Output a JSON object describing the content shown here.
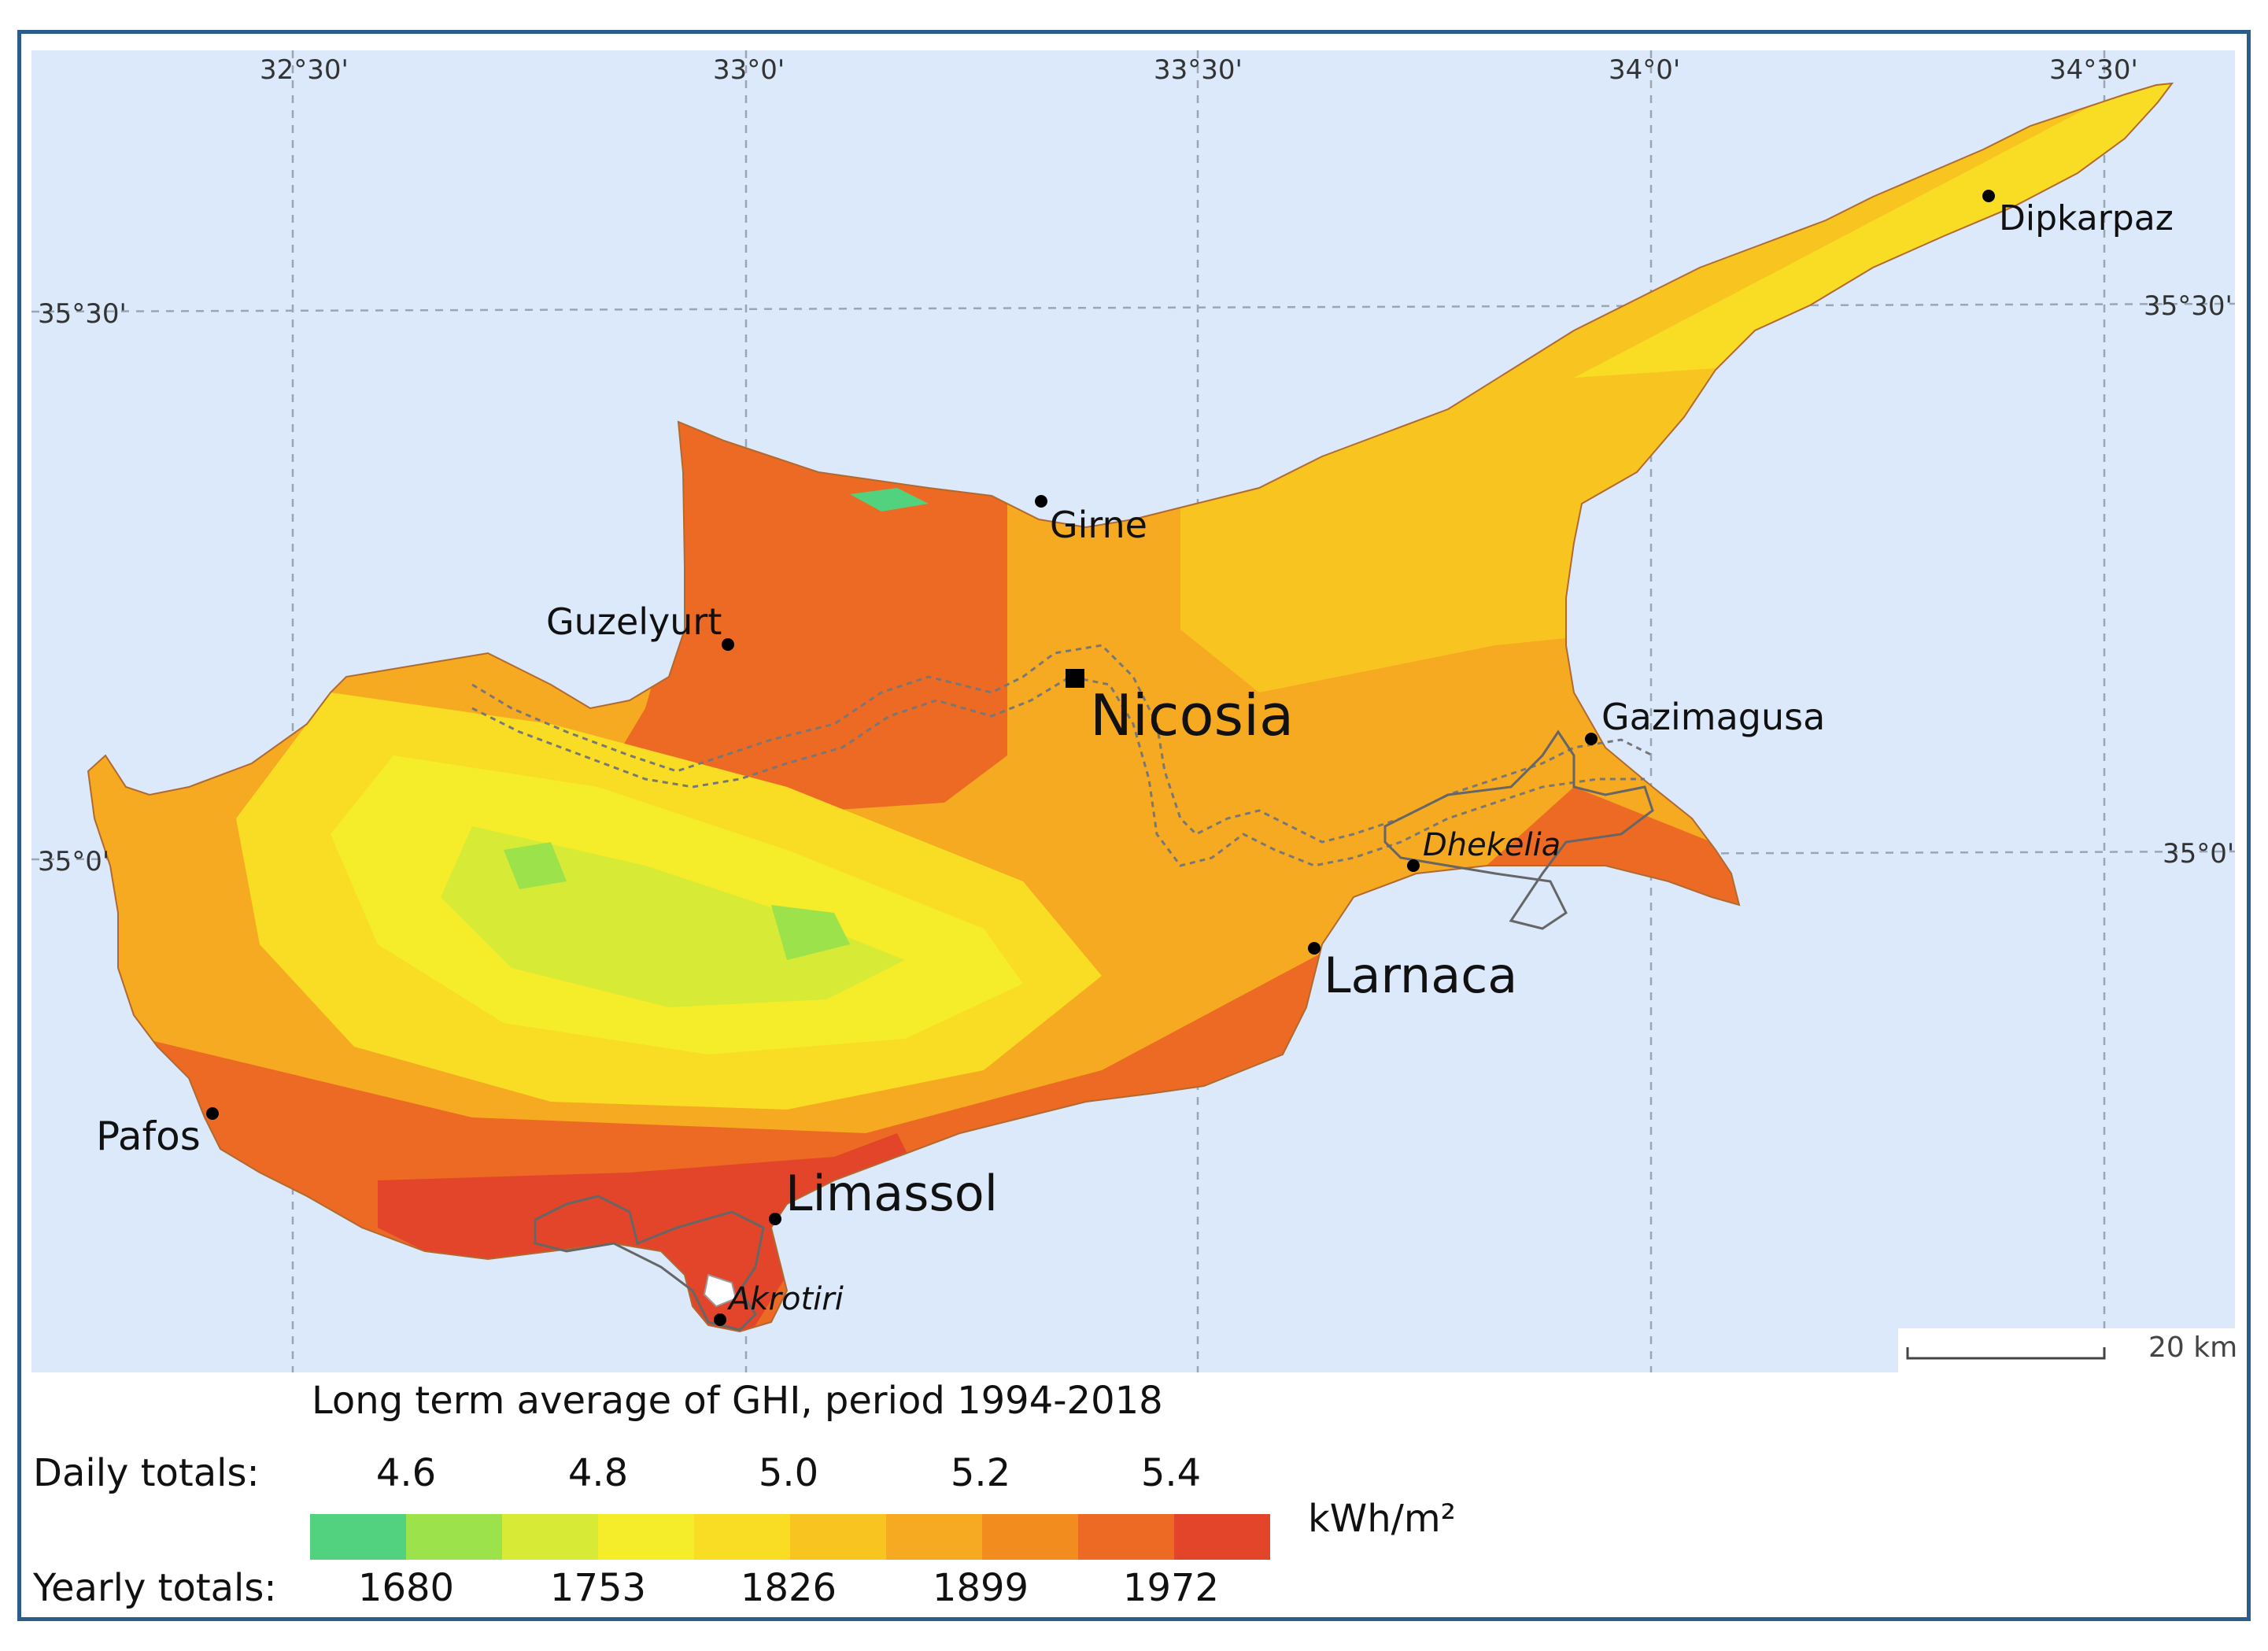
{
  "map": {
    "graticule": {
      "longitudes": [
        "32°30'",
        "33°0'",
        "33°30'",
        "34°0'",
        "34°30'"
      ],
      "latitudes": [
        "35°30'",
        "35°0'"
      ]
    },
    "places": [
      {
        "name": "Dipkarpaz",
        "style": "normal"
      },
      {
        "name": "Girne",
        "style": "normal"
      },
      {
        "name": "Guzelyurt",
        "style": "normal"
      },
      {
        "name": "Nicosia",
        "style": "capital"
      },
      {
        "name": "Gazimagusa",
        "style": "normal"
      },
      {
        "name": "Dhekelia",
        "style": "italic"
      },
      {
        "name": "Larnaca",
        "style": "large"
      },
      {
        "name": "Pafos",
        "style": "normal"
      },
      {
        "name": "Limassol",
        "style": "large"
      },
      {
        "name": "Akrotiri",
        "style": "italic"
      }
    ],
    "scale_bar": "20 km",
    "colors": {
      "sea": "#dbe9fb",
      "border": "#2b5c8a",
      "graticule": "#9aa6b4"
    }
  },
  "legend": {
    "title": "Long term average of GHI, period 1994-2018",
    "daily_label": "Daily totals:",
    "daily_ticks": [
      "4.6",
      "4.8",
      "5.0",
      "5.2",
      "5.4"
    ],
    "yearly_label": "Yearly totals:",
    "yearly_ticks": [
      "1680",
      "1753",
      "1826",
      "1899",
      "1972"
    ],
    "unit": "kWh/m²",
    "colors": [
      "#52d27e",
      "#9ce24a",
      "#d6ea36",
      "#f5ec2a",
      "#f9dc24",
      "#f8c420",
      "#f6aa22",
      "#f38c1e",
      "#ec6a23",
      "#e2452a"
    ]
  }
}
